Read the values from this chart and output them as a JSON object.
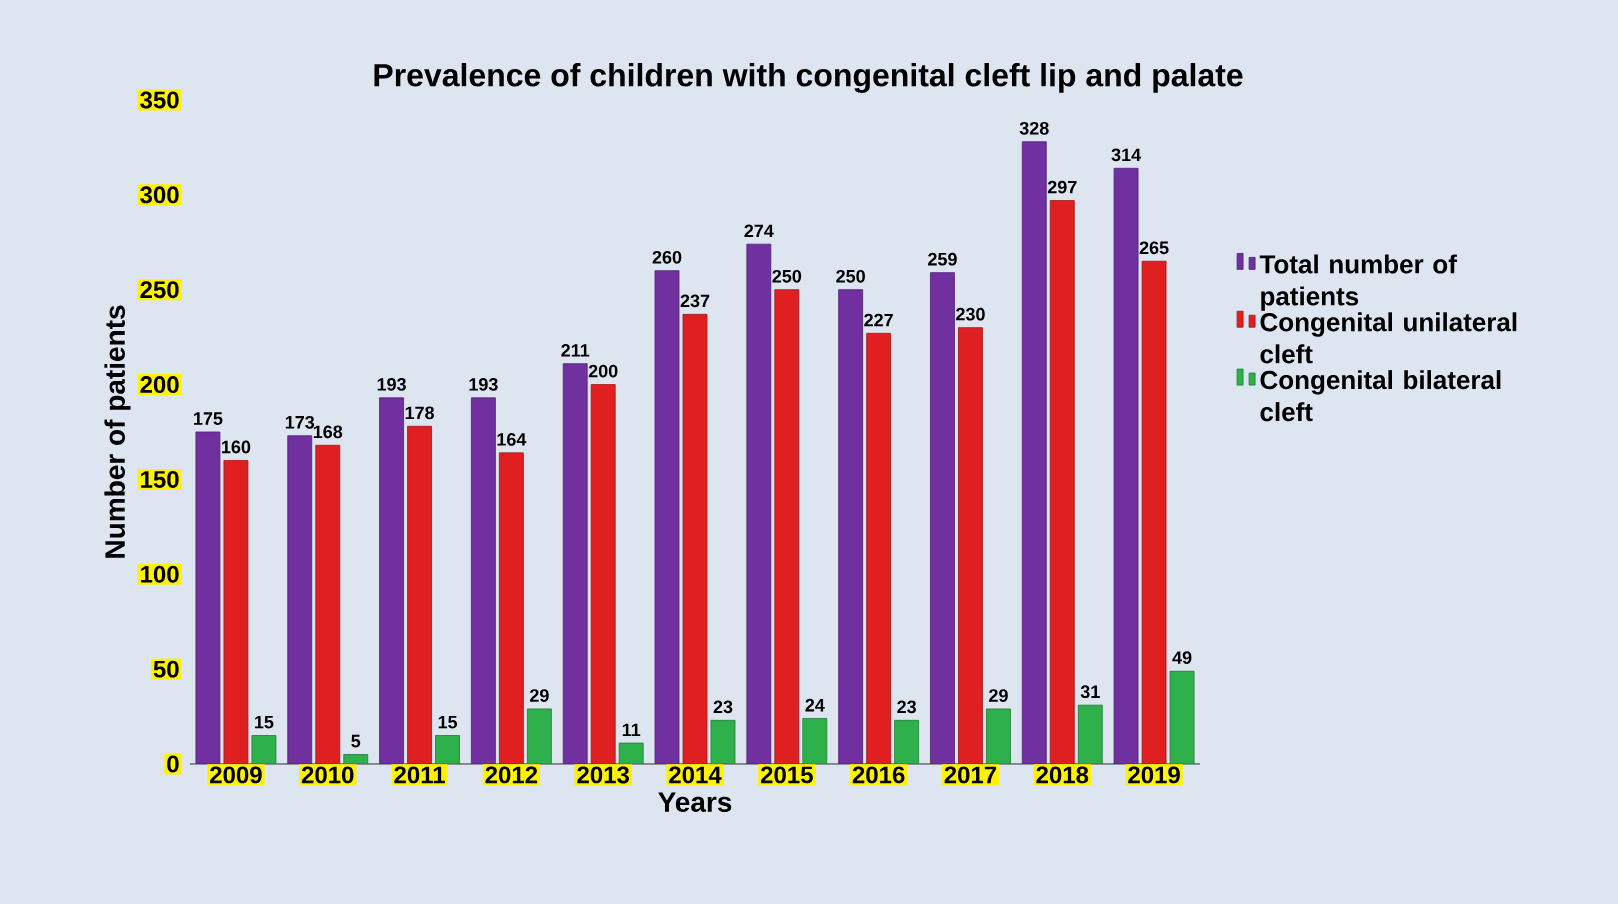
{
  "chart_data": {
    "type": "bar",
    "title": "Prevalence of children with congenital cleft lip and palate",
    "xlabel": "Years",
    "ylabel": "Number of patients",
    "categories": [
      "2009",
      "2010",
      "2011",
      "2012",
      "2013",
      "2014",
      "2015",
      "2016",
      "2017",
      "2018",
      "2019"
    ],
    "series": [
      {
        "name": "Total number of patients",
        "color": "#7030a0",
        "values": [
          175,
          173,
          193,
          193,
          211,
          260,
          274,
          250,
          259,
          328,
          314
        ]
      },
      {
        "name": "Congenital unilateral cleft",
        "color": "#e02020",
        "values": [
          160,
          168,
          178,
          164,
          200,
          237,
          250,
          227,
          230,
          297,
          265
        ]
      },
      {
        "name": "Congenital bilateral cleft",
        "color": "#2eb04a",
        "values": [
          15,
          5,
          15,
          29,
          11,
          23,
          24,
          23,
          29,
          31,
          49
        ]
      }
    ],
    "ylim": [
      0,
      350
    ],
    "yticks": [
      0,
      50,
      100,
      150,
      200,
      250,
      300,
      350
    ],
    "data_labels": true,
    "legend": "right"
  }
}
